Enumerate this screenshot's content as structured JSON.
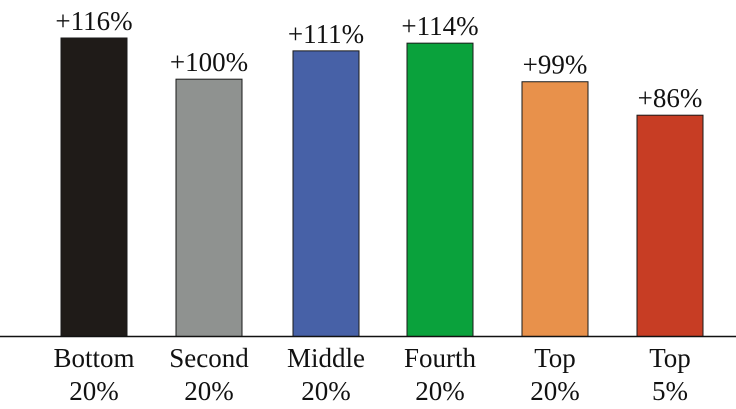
{
  "chart_data": {
    "type": "bar",
    "title": "",
    "xlabel": "",
    "ylabel": "",
    "categories": [
      [
        "Bottom",
        "20%"
      ],
      [
        "Second",
        "20%"
      ],
      [
        "Middle",
        "20%"
      ],
      [
        "Fourth",
        "20%"
      ],
      [
        "Top",
        "20%"
      ],
      [
        "Top",
        "5%"
      ]
    ],
    "values": [
      116,
      100,
      111,
      114,
      99,
      86
    ],
    "value_labels": [
      "+116%",
      "+100%",
      "+111%",
      "+114%",
      "+99%",
      "+86%"
    ],
    "colors": [
      "#1f1b18",
      "#8f9290",
      "#4761a7",
      "#0aa23c",
      "#e8914b",
      "#c73d24"
    ],
    "ylim": [
      0,
      116
    ],
    "grid": false,
    "legend": "none"
  }
}
